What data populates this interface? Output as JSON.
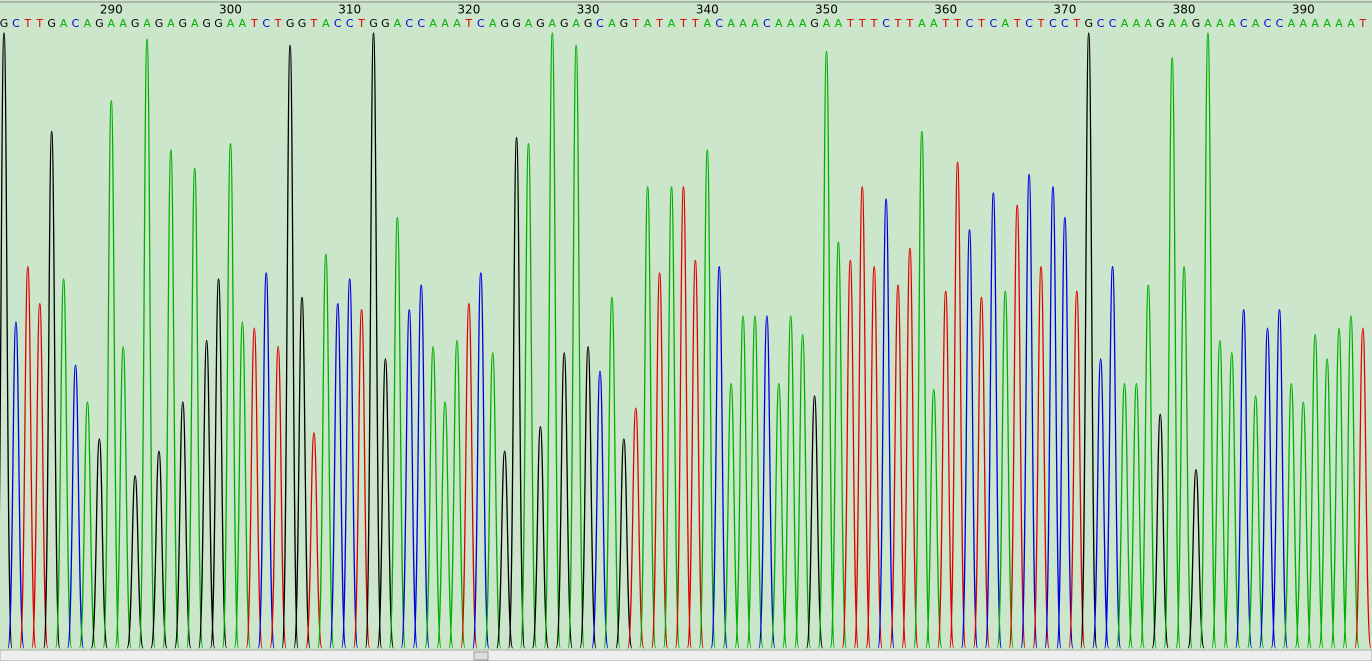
{
  "chart_data": {
    "type": "chromatogram",
    "bases": [
      "G",
      "C",
      "T",
      "T",
      "G",
      "A",
      "C",
      "A",
      "G",
      "A",
      "A",
      "G",
      "A",
      "G",
      "A",
      "G",
      "A",
      "G",
      "G",
      "A",
      "A",
      "T",
      "C",
      "T",
      "G",
      "G",
      "T",
      "A",
      "C",
      "C",
      "T",
      "G",
      "G",
      "A",
      "C",
      "C",
      "A",
      "A",
      "A",
      "T",
      "C",
      "A",
      "G",
      "G",
      "A",
      "G",
      "A",
      "G",
      "A",
      "G",
      "C",
      "A",
      "G",
      "T",
      "A",
      "T",
      "A",
      "T",
      "T",
      "A",
      "C",
      "A",
      "A",
      "A",
      "C",
      "A",
      "A",
      "A",
      "G",
      "A",
      "A",
      "T",
      "T",
      "T",
      "C",
      "T",
      "T",
      "A",
      "A",
      "T",
      "T",
      "C",
      "T",
      "C",
      "A",
      "T",
      "C",
      "T",
      "C",
      "C",
      "T",
      "G",
      "C",
      "C",
      "A",
      "A",
      "A",
      "G",
      "A",
      "A",
      "G",
      "A",
      "A",
      "A",
      "C",
      "A",
      "C",
      "C",
      "A",
      "A",
      "A",
      "A",
      "A",
      "A",
      "T"
    ],
    "peaks": [
      100,
      53,
      62,
      56,
      84,
      60,
      46,
      40,
      34,
      89,
      49,
      28,
      99,
      32,
      81,
      40,
      78,
      50,
      60,
      82,
      53,
      52,
      61,
      49,
      98,
      57,
      35,
      64,
      56,
      60,
      55,
      100,
      47,
      70,
      55,
      59,
      49,
      40,
      50,
      56,
      61,
      48,
      32,
      83,
      82,
      36,
      100,
      48,
      98,
      49,
      45,
      57,
      34,
      39,
      75,
      61,
      75,
      75,
      63,
      81,
      62,
      43,
      54,
      54,
      54,
      43,
      54,
      51,
      41,
      97,
      66,
      63,
      75,
      62,
      73,
      59,
      65,
      84,
      42,
      58,
      79,
      68,
      57,
      74,
      58,
      72,
      77,
      62,
      75,
      70,
      58,
      100,
      47,
      62,
      43,
      43,
      59,
      38,
      96,
      62,
      29,
      100,
      50,
      48,
      55,
      41,
      52,
      55,
      43,
      40,
      51,
      47,
      52,
      54,
      52
    ],
    "positions": [
      290,
      300,
      310,
      320,
      330,
      340,
      350,
      360,
      370,
      380,
      390
    ],
    "base_colors": {
      "A": "#00b000",
      "C": "#0000e0",
      "G": "#000000",
      "T": "#e00000"
    },
    "ylim": [
      0,
      100
    ]
  }
}
